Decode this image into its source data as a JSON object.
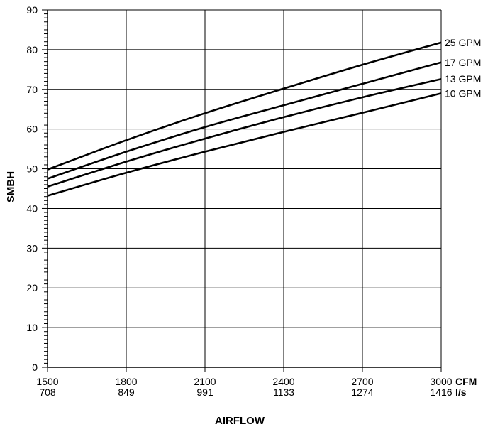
{
  "chart_data": {
    "type": "line",
    "title": "",
    "xlabel": "AIRFLOW",
    "ylabel": "SMBH",
    "x_unit_primary": "CFM",
    "x_unit_secondary": "l/s",
    "x_ticks_primary": [
      "1500",
      "1800",
      "2100",
      "2400",
      "2700",
      "3000"
    ],
    "x_ticks_secondary": [
      "708",
      "849",
      "991",
      "1133",
      "1274",
      "1416"
    ],
    "y_ticks": [
      "0",
      "10",
      "20",
      "30",
      "40",
      "50",
      "60",
      "70",
      "80",
      "90"
    ],
    "xlim": [
      1500,
      3000
    ],
    "ylim": [
      0,
      90
    ],
    "grid": true,
    "legend": "end-of-line labels",
    "x": [
      1500,
      1800,
      2100,
      2400,
      2700,
      3000
    ],
    "series": [
      {
        "name": "25 GPM",
        "values": [
          49.8,
          57.2,
          64.0,
          70.2,
          76.2,
          81.8
        ]
      },
      {
        "name": "17 GPM",
        "values": [
          47.5,
          54.3,
          60.5,
          66.0,
          71.4,
          76.8
        ]
      },
      {
        "name": "13 GPM",
        "values": [
          45.5,
          51.8,
          57.6,
          63.0,
          68.0,
          72.6
        ]
      },
      {
        "name": "10 GPM",
        "values": [
          43.2,
          49.0,
          54.3,
          59.3,
          64.1,
          69.0
        ]
      }
    ]
  }
}
